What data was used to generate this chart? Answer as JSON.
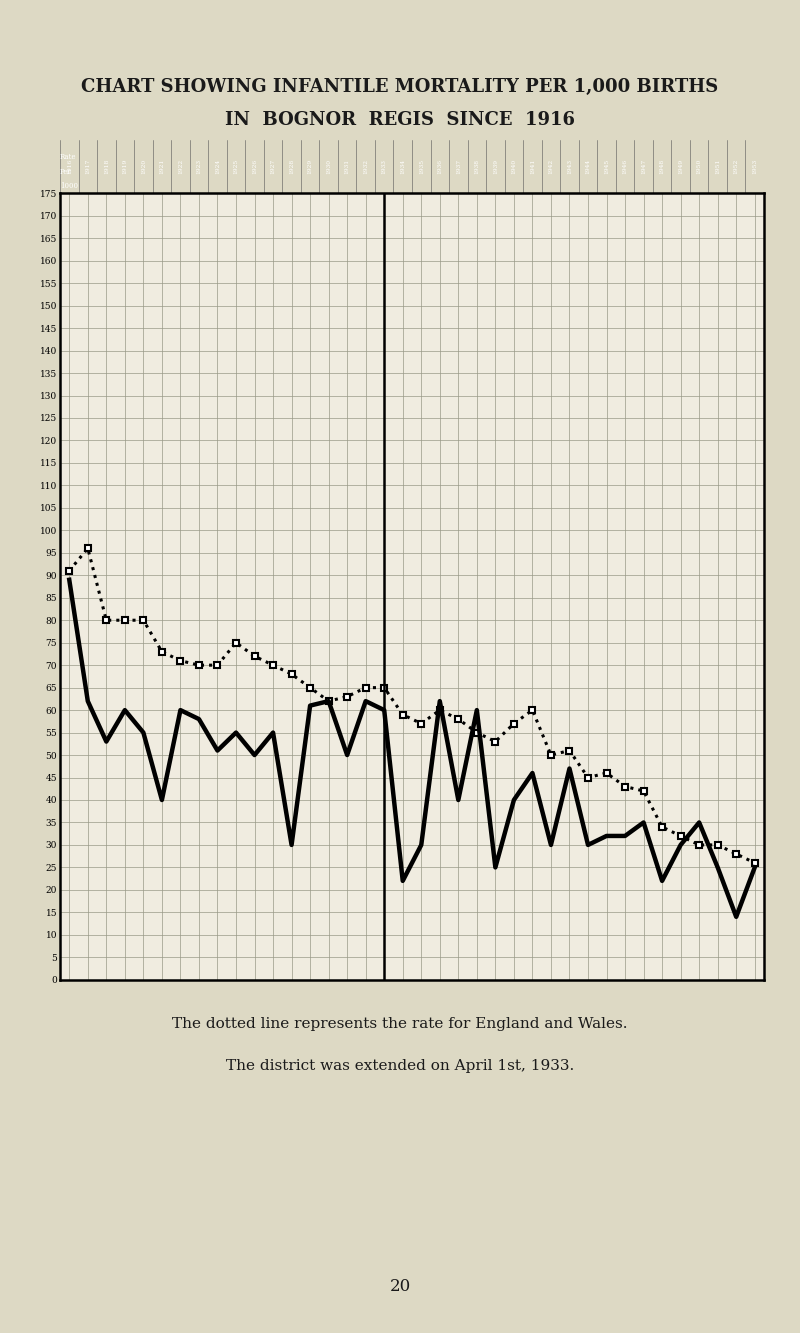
{
  "title_line1": "CHART SHOWING INFANTILE MORTALITY PER 1,000 BIRTHS",
  "title_line2": "IN  BOGNOR  REGIS  SINCE  1916",
  "caption1": "The dotted line represents the rate for England and Wales.",
  "caption2": "The district was extended on April 1st, 1933.",
  "page_number": "20",
  "years": [
    1916,
    1917,
    1918,
    1919,
    1920,
    1921,
    1922,
    1923,
    1924,
    1925,
    1926,
    1927,
    1928,
    1929,
    1930,
    1931,
    1932,
    1933,
    1934,
    1935,
    1936,
    1937,
    1938,
    1939,
    1940,
    1941,
    1942,
    1943,
    1944,
    1945,
    1946,
    1947,
    1948,
    1949,
    1950,
    1951,
    1952,
    1953
  ],
  "bognor": [
    89,
    62,
    53,
    60,
    55,
    40,
    60,
    58,
    51,
    55,
    50,
    55,
    30,
    61,
    62,
    50,
    62,
    60,
    22,
    30,
    62,
    40,
    60,
    25,
    40,
    46,
    30,
    47,
    30,
    32,
    32,
    35,
    22,
    30,
    35,
    25,
    14,
    25
  ],
  "england_wales": [
    91,
    96,
    80,
    80,
    80,
    73,
    71,
    70,
    70,
    75,
    72,
    70,
    68,
    65,
    62,
    63,
    65,
    65,
    59,
    57,
    60,
    58,
    55,
    53,
    57,
    60,
    50,
    51,
    45,
    46,
    43,
    42,
    34,
    32,
    30,
    30,
    28,
    26
  ],
  "bg_color": "#ddd9c4",
  "chart_bg": "#f0ece0",
  "ylim_max": 175,
  "ytick_step": 5
}
